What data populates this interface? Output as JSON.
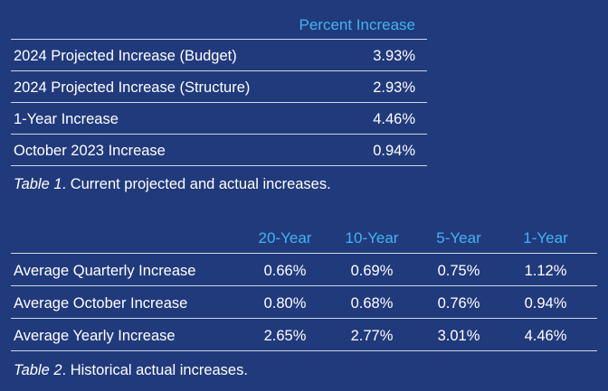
{
  "table1": {
    "header": "Percent Increase",
    "rows": [
      {
        "label": "2024 Projected Increase (Budget)",
        "value": "3.93%"
      },
      {
        "label": "2024 Projected Increase (Structure)",
        "value": "2.93%"
      },
      {
        "label": "1-Year Increase",
        "value": "4.46%"
      },
      {
        "label": "October 2023 Increase",
        "value": "0.94%"
      }
    ],
    "caption_label": "Table 1",
    "caption_text": ". Current projected and actual increases."
  },
  "table2": {
    "headers": [
      "20-Year",
      "10-Year",
      "5-Year",
      "1-Year"
    ],
    "rows": [
      {
        "label": "Average Quarterly Increase",
        "values": [
          "0.66%",
          "0.69%",
          "0.75%",
          "1.12%"
        ]
      },
      {
        "label": "Average October Increase",
        "values": [
          "0.80%",
          "0.68%",
          "0.76%",
          "0.94%"
        ]
      },
      {
        "label": "Average Yearly Increase",
        "values": [
          "2.65%",
          "2.77%",
          "3.01%",
          "4.46%"
        ]
      }
    ],
    "caption_label": "Table 2",
    "caption_text": ". Historical actual increases."
  },
  "colors": {
    "background": "#213a7c",
    "header_accent": "#42b4ee",
    "text": "#ffffff",
    "rule": "#d0d6e6"
  }
}
